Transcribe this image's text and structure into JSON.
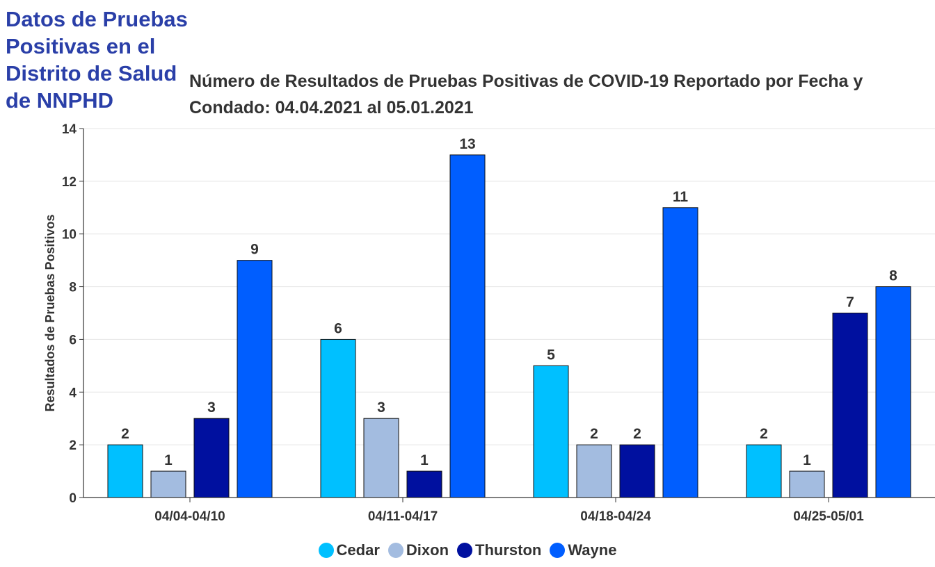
{
  "page": {
    "heading": "Datos de Pruebas Positivas en el Distrito de Salud de NNPHD"
  },
  "chart_data": {
    "type": "bar",
    "title": "Número de Resultados de Pruebas Positivas de COVID-19 Reportado por Fecha y Condado: 04.04.2021 al 05.01.2021",
    "xlabel": "",
    "ylabel": "Resultados de Pruebas Positivos",
    "ylim": [
      0,
      14
    ],
    "yticks": [
      0,
      2,
      4,
      6,
      8,
      10,
      12,
      14
    ],
    "grid": true,
    "legend_position": "bottom",
    "categories": [
      "04/04-04/10",
      "04/11-04/17",
      "04/18-04/24",
      "04/25-05/01"
    ],
    "series": [
      {
        "name": "Cedar",
        "color": "#00c0ff",
        "values": [
          2,
          6,
          5,
          2
        ]
      },
      {
        "name": "Dixon",
        "color": "#a3bce0",
        "values": [
          1,
          3,
          2,
          1
        ]
      },
      {
        "name": "Thurston",
        "color": "#00109f",
        "values": [
          3,
          1,
          2,
          7
        ]
      },
      {
        "name": "Wayne",
        "color": "#005eff",
        "values": [
          9,
          13,
          11,
          8
        ]
      }
    ]
  }
}
